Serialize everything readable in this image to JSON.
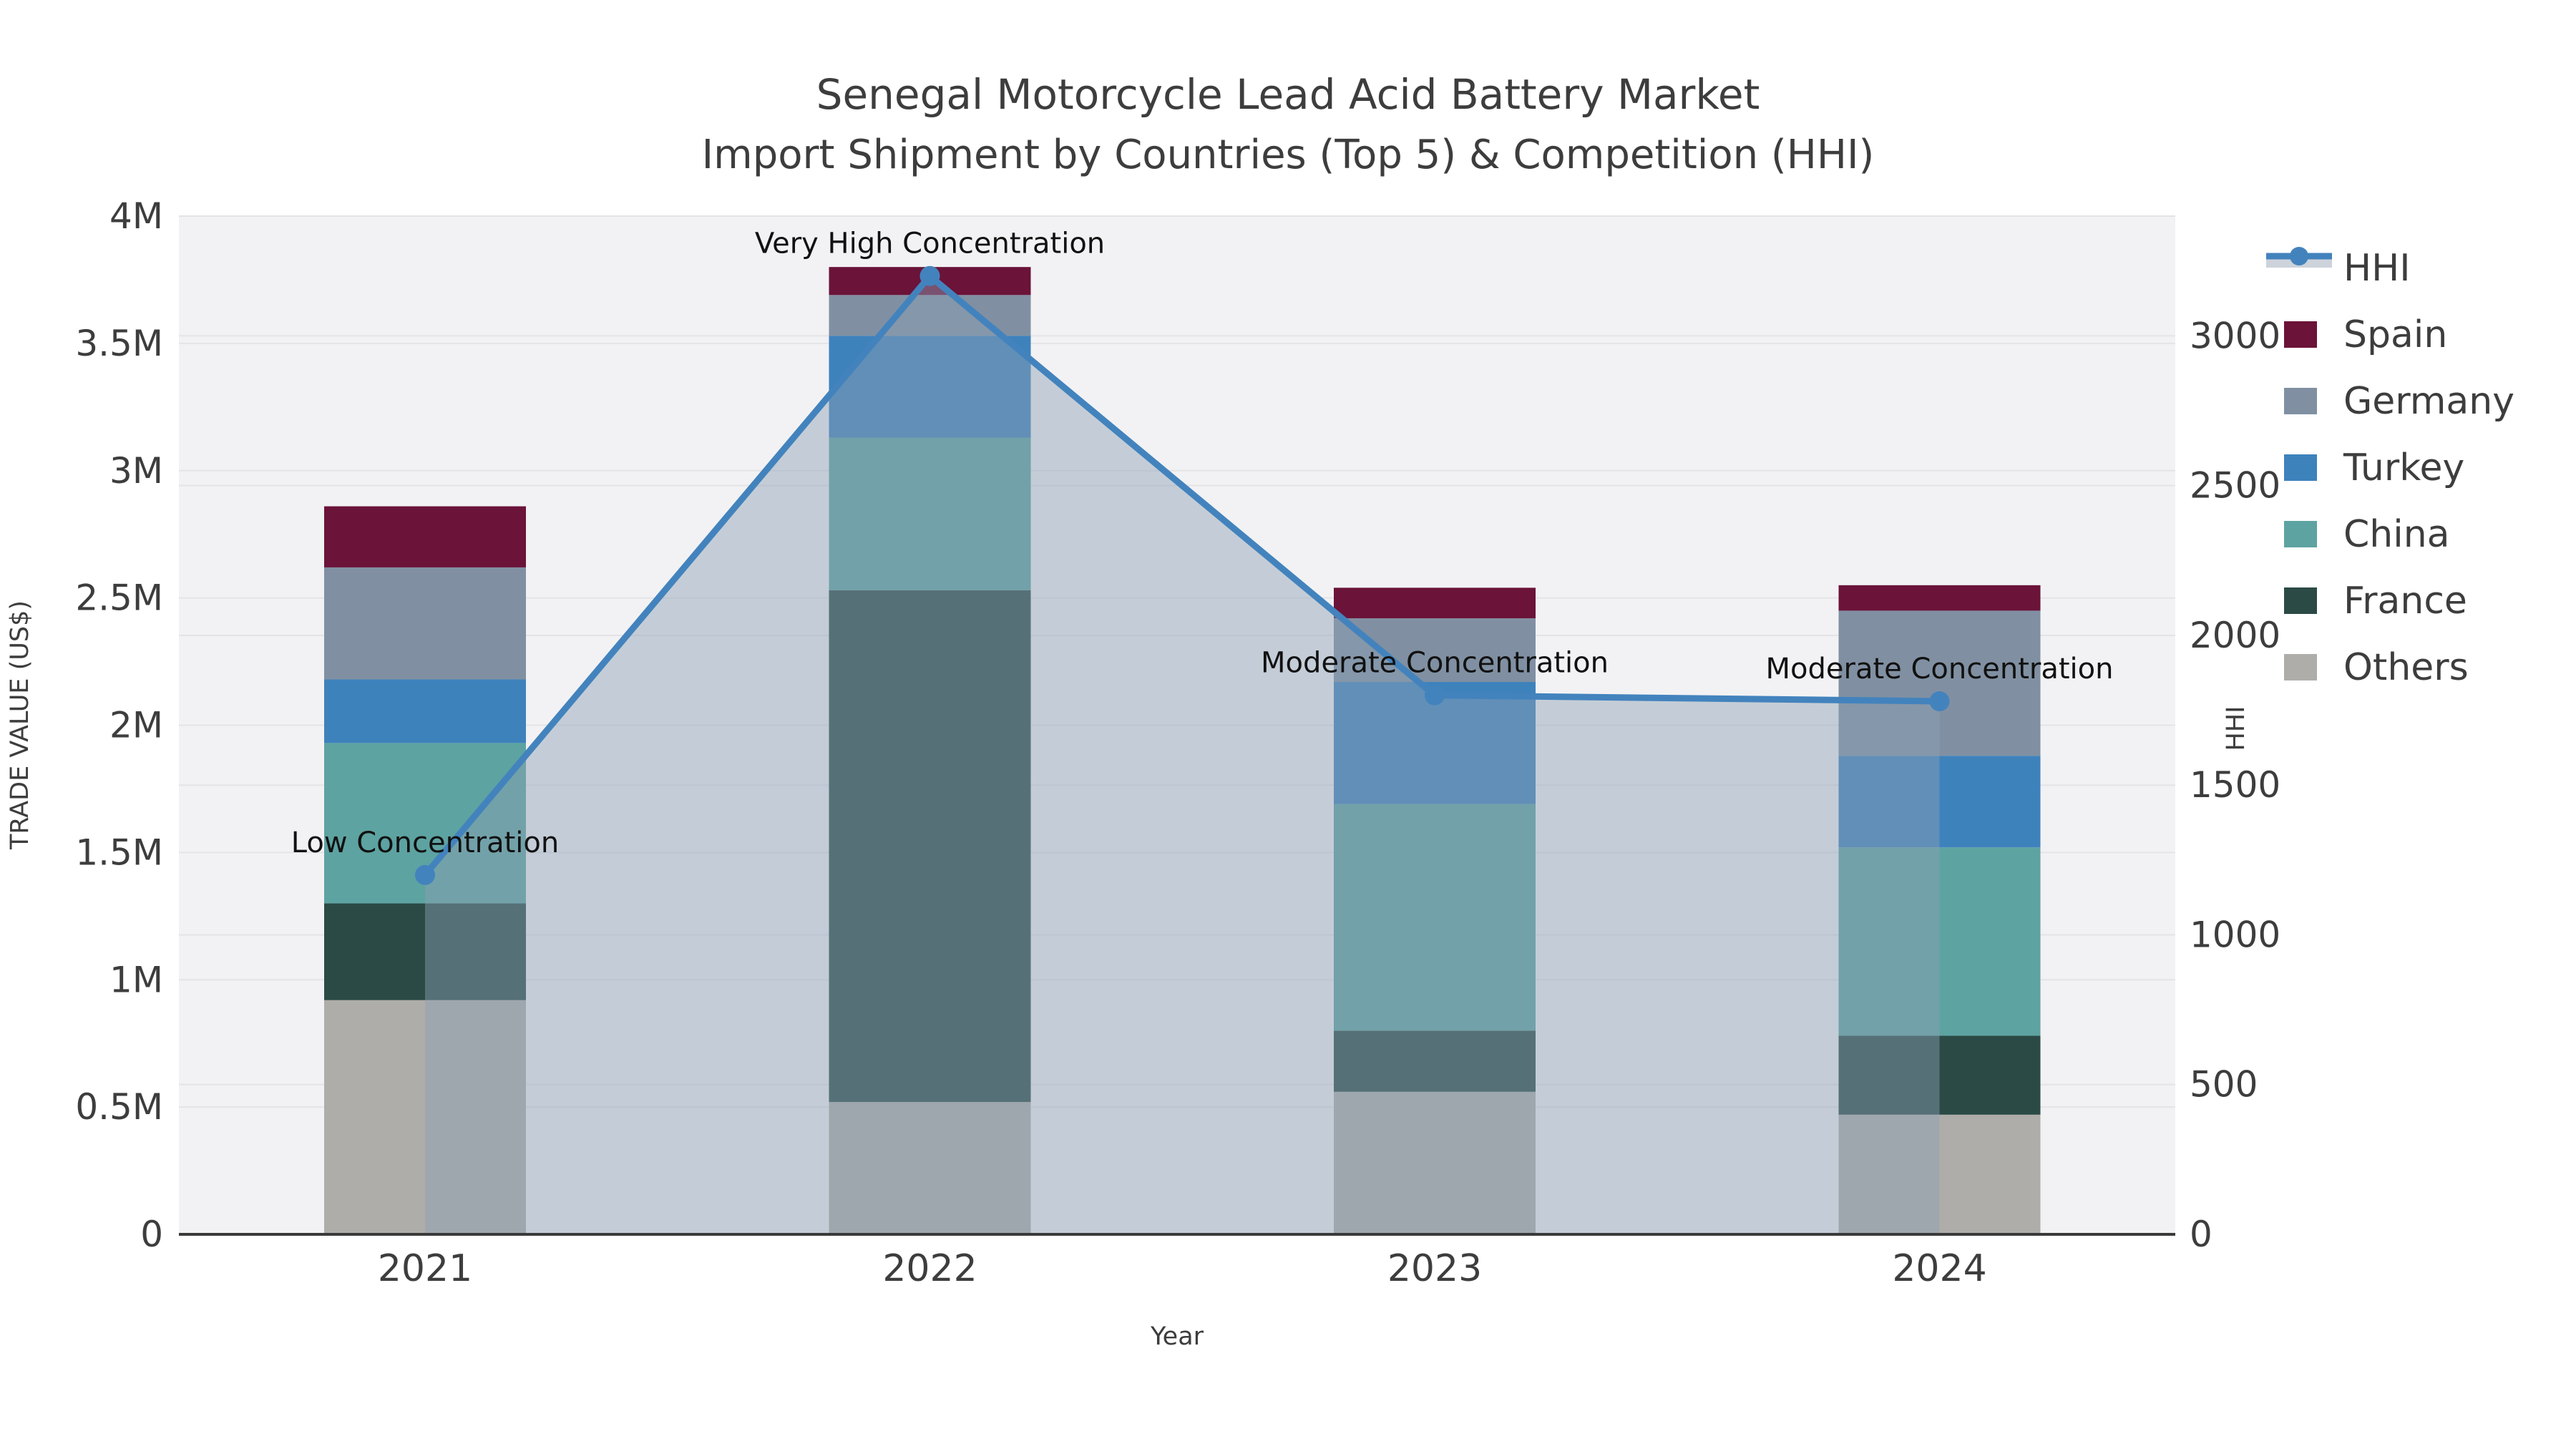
{
  "title": {
    "line1": "Senegal Motorcycle Lead Acid Battery Market",
    "line2": "Import Shipment by Countries (Top 5) & Competition (HHI)"
  },
  "axes": {
    "left_label": "TRADE VALUE (US$)",
    "right_label": "HHI",
    "x_label": "Year"
  },
  "legend": [
    "HHI",
    "Spain",
    "Germany",
    "Turkey",
    "China",
    "France",
    "Others"
  ],
  "colors": {
    "HHI": "#4383BD",
    "Spain": "#6B1339",
    "Germany": "#8090A2",
    "Turkey": "#3E82BC",
    "China": "#5DA3A1",
    "France": "#2B4A45",
    "Others": "#AFADAA",
    "area_fill": "rgba(140,160,180,0.45)",
    "legend_band": "#CDD3DB",
    "plot_bg": "#F2F2F4",
    "grid": "#E4E4E7",
    "axis_line": "#3A3A3A",
    "tick_text": "#3D3D3D",
    "annotation_text": "#111111"
  },
  "chart_data": {
    "type": "bar",
    "subtype": "stacked-bars-with-line-dual-axis",
    "categories": [
      "2021",
      "2022",
      "2023",
      "2024"
    ],
    "series": [
      {
        "name": "Others",
        "values": [
          920000,
          520000,
          560000,
          470000
        ]
      },
      {
        "name": "France",
        "values": [
          380000,
          2010000,
          240000,
          310000
        ]
      },
      {
        "name": "China",
        "values": [
          630000,
          600000,
          890000,
          740000
        ]
      },
      {
        "name": "Turkey",
        "values": [
          250000,
          400000,
          480000,
          360000
        ]
      },
      {
        "name": "Germany",
        "values": [
          440000,
          160000,
          250000,
          570000
        ]
      },
      {
        "name": "Spain",
        "values": [
          240000,
          110000,
          120000,
          100000
        ]
      }
    ],
    "bar_totals": [
      2860000,
      3800000,
      2540000,
      2550000
    ],
    "line_series": {
      "name": "HHI",
      "axis": "right",
      "values": [
        1200,
        3200,
        1800,
        1780
      ],
      "area_fill": true
    },
    "annotations": [
      {
        "x": "2021",
        "text": "Low Concentration"
      },
      {
        "x": "2022",
        "text": "Very High Concentration"
      },
      {
        "x": "2023",
        "text": "Moderate Concentration"
      },
      {
        "x": "2024",
        "text": "Moderate Concentration"
      }
    ],
    "left_axis": {
      "title": "TRADE VALUE (US$)",
      "min": 0,
      "max": 4000000,
      "ticks": [
        {
          "v": 0,
          "label": "0"
        },
        {
          "v": 500000,
          "label": "0.5M"
        },
        {
          "v": 1000000,
          "label": "1M"
        },
        {
          "v": 1500000,
          "label": "1.5M"
        },
        {
          "v": 2000000,
          "label": "2M"
        },
        {
          "v": 2500000,
          "label": "2.5M"
        },
        {
          "v": 3000000,
          "label": "3M"
        },
        {
          "v": 3500000,
          "label": "3.5M"
        },
        {
          "v": 4000000,
          "label": "4M"
        }
      ]
    },
    "right_axis": {
      "title": "HHI",
      "min": 0,
      "max": 3400,
      "ticks": [
        0,
        500,
        1000,
        1500,
        2000,
        2500,
        3000
      ]
    },
    "x_axis": {
      "title": "Year"
    },
    "legend_position": "right",
    "grid": true
  }
}
